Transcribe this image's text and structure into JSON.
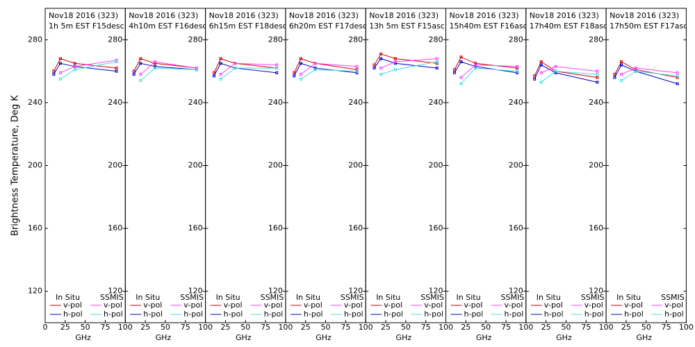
{
  "chart_data": [
    {
      "type": "line",
      "title": "Nov18 2016 (323)",
      "subtitle": "1h 5m  EST  F15desc",
      "ylabel": "Brightness Temperature, Deg K",
      "xlabel": "GHz",
      "x": [
        10.7,
        19,
        37,
        89
      ],
      "xlim": [
        0,
        100
      ],
      "xticks": [
        0,
        25,
        50,
        75,
        100
      ],
      "ylim": [
        100,
        300
      ],
      "yticks": [
        120,
        160,
        200,
        240,
        280
      ],
      "series": [
        {
          "group": "In Situ",
          "name": "v-pol",
          "color": "#d00000",
          "values": [
            260,
            268,
            265,
            262
          ]
        },
        {
          "group": "In Situ",
          "name": "h-pol",
          "color": "#0000c0",
          "values": [
            258,
            265,
            263,
            260
          ]
        },
        {
          "group": "SSMIS",
          "name": "v-pol",
          "color": "#ff40ff",
          "values": [
            null,
            259,
            263,
            267
          ]
        },
        {
          "group": "SSMIS",
          "name": "h-pol",
          "color": "#40e0e0",
          "values": [
            null,
            255,
            261,
            266
          ]
        }
      ]
    },
    {
      "type": "line",
      "title": "Nov18 2016 (323)",
      "subtitle": "4h10m  EST  F16desc",
      "xlabel": "GHz",
      "x": [
        10.7,
        19,
        37,
        89
      ],
      "xlim": [
        0,
        100
      ],
      "xticks": [
        25,
        50,
        75,
        100
      ],
      "ylim": [
        100,
        300
      ],
      "yticks": [
        120,
        160,
        200,
        240,
        280
      ],
      "series": [
        {
          "group": "In Situ",
          "name": "v-pol",
          "color": "#d00000",
          "values": [
            260,
            268,
            265,
            262
          ]
        },
        {
          "group": "In Situ",
          "name": "h-pol",
          "color": "#0000c0",
          "values": [
            258,
            265,
            263,
            261
          ]
        },
        {
          "group": "SSMIS",
          "name": "v-pol",
          "color": "#ff40ff",
          "values": [
            null,
            258,
            266,
            262
          ]
        },
        {
          "group": "SSMIS",
          "name": "h-pol",
          "color": "#40e0e0",
          "values": [
            null,
            254,
            262,
            261
          ]
        }
      ]
    },
    {
      "type": "line",
      "title": "Nov18 2016 (323)",
      "subtitle": "6h15m  EST  F18desc",
      "xlabel": "GHz",
      "x": [
        10.7,
        19,
        37,
        89
      ],
      "xlim": [
        0,
        100
      ],
      "xticks": [
        25,
        50,
        75,
        100
      ],
      "ylim": [
        100,
        300
      ],
      "yticks": [
        120,
        160,
        200,
        240,
        280
      ],
      "series": [
        {
          "group": "In Situ",
          "name": "v-pol",
          "color": "#d00000",
          "values": [
            259,
            268,
            265,
            262
          ]
        },
        {
          "group": "In Situ",
          "name": "h-pol",
          "color": "#0000c0",
          "values": [
            257,
            265,
            262,
            259
          ]
        },
        {
          "group": "SSMIS",
          "name": "v-pol",
          "color": "#ff40ff",
          "values": [
            null,
            258,
            265,
            264
          ]
        },
        {
          "group": "SSMIS",
          "name": "h-pol",
          "color": "#40e0e0",
          "values": [
            null,
            255,
            262,
            262
          ]
        }
      ]
    },
    {
      "type": "line",
      "title": "Nov18 2016 (323)",
      "subtitle": "6h20m  EST  F17desc",
      "xlabel": "GHz",
      "x": [
        10.7,
        19,
        37,
        89
      ],
      "xlim": [
        0,
        100
      ],
      "xticks": [
        25,
        50,
        75,
        100
      ],
      "ylim": [
        100,
        300
      ],
      "yticks": [
        120,
        160,
        200,
        240,
        280
      ],
      "series": [
        {
          "group": "In Situ",
          "name": "v-pol",
          "color": "#d00000",
          "values": [
            259,
            268,
            265,
            261
          ]
        },
        {
          "group": "In Situ",
          "name": "h-pol",
          "color": "#0000c0",
          "values": [
            257,
            265,
            262,
            259
          ]
        },
        {
          "group": "SSMIS",
          "name": "v-pol",
          "color": "#ff40ff",
          "values": [
            null,
            258,
            265,
            263
          ]
        },
        {
          "group": "SSMIS",
          "name": "h-pol",
          "color": "#40e0e0",
          "values": [
            null,
            255,
            261,
            260
          ]
        }
      ]
    },
    {
      "type": "line",
      "title": "Nov18 2016 (323)",
      "subtitle": "13h 5m  EST  F15asc",
      "xlabel": "GHz",
      "x": [
        10.7,
        19,
        37,
        89
      ],
      "xlim": [
        0,
        100
      ],
      "xticks": [
        25,
        50,
        75,
        100
      ],
      "ylim": [
        100,
        300
      ],
      "yticks": [
        120,
        160,
        200,
        240,
        280
      ],
      "series": [
        {
          "group": "In Situ",
          "name": "v-pol",
          "color": "#d00000",
          "values": [
            264,
            271,
            268,
            265
          ]
        },
        {
          "group": "In Situ",
          "name": "h-pol",
          "color": "#0000c0",
          "values": [
            262,
            268,
            265,
            262
          ]
        },
        {
          "group": "SSMIS",
          "name": "v-pol",
          "color": "#ff40ff",
          "values": [
            null,
            262,
            266,
            268
          ]
        },
        {
          "group": "SSMIS",
          "name": "h-pol",
          "color": "#40e0e0",
          "values": [
            null,
            258,
            261,
            266
          ]
        }
      ]
    },
    {
      "type": "line",
      "title": "Nov18 2016 (323)",
      "subtitle": "15h40m  EST  F16asc",
      "xlabel": "GHz",
      "x": [
        10.7,
        19,
        37,
        89
      ],
      "xlim": [
        0,
        100
      ],
      "xticks": [
        25,
        50,
        75,
        100
      ],
      "ylim": [
        100,
        300
      ],
      "yticks": [
        120,
        160,
        200,
        240,
        280
      ],
      "series": [
        {
          "group": "In Situ",
          "name": "v-pol",
          "color": "#d00000",
          "values": [
            261,
            269,
            265,
            262
          ]
        },
        {
          "group": "In Situ",
          "name": "h-pol",
          "color": "#0000c0",
          "values": [
            259,
            266,
            263,
            259
          ]
        },
        {
          "group": "SSMIS",
          "name": "v-pol",
          "color": "#ff40ff",
          "values": [
            null,
            256,
            264,
            263
          ]
        },
        {
          "group": "SSMIS",
          "name": "h-pol",
          "color": "#40e0e0",
          "values": [
            null,
            252,
            262,
            260
          ]
        }
      ]
    },
    {
      "type": "line",
      "title": "Nov18 2016 (323)",
      "subtitle": "17h40m  EST  F18asc",
      "xlabel": "GHz",
      "x": [
        10.7,
        19,
        37,
        89
      ],
      "xlim": [
        0,
        100
      ],
      "xticks": [
        25,
        50,
        75,
        100
      ],
      "ylim": [
        100,
        300
      ],
      "yticks": [
        120,
        160,
        200,
        240,
        280
      ],
      "series": [
        {
          "group": "In Situ",
          "name": "v-pol",
          "color": "#d00000",
          "values": [
            257,
            266,
            260,
            256
          ]
        },
        {
          "group": "In Situ",
          "name": "h-pol",
          "color": "#0000c0",
          "values": [
            255,
            264,
            259,
            253
          ]
        },
        {
          "group": "SSMIS",
          "name": "v-pol",
          "color": "#ff40ff",
          "values": [
            null,
            259,
            263,
            260
          ]
        },
        {
          "group": "SSMIS",
          "name": "h-pol",
          "color": "#40e0e0",
          "values": [
            null,
            253,
            260,
            258
          ]
        }
      ]
    },
    {
      "type": "line",
      "title": "Nov18 2016 (323)",
      "subtitle": "17h50m  EST  F17asc",
      "xlabel": "GHz",
      "x": [
        10.7,
        19,
        37,
        89
      ],
      "xlim": [
        0,
        100
      ],
      "xticks": [
        25,
        50,
        75,
        100
      ],
      "ylim": [
        100,
        300
      ],
      "yticks": [
        120,
        160,
        200,
        240,
        280
      ],
      "series": [
        {
          "group": "In Situ",
          "name": "v-pol",
          "color": "#d00000",
          "values": [
            258,
            266,
            261,
            256
          ]
        },
        {
          "group": "In Situ",
          "name": "h-pol",
          "color": "#0000c0",
          "values": [
            256,
            264,
            260,
            252
          ]
        },
        {
          "group": "SSMIS",
          "name": "v-pol",
          "color": "#ff40ff",
          "values": [
            null,
            258,
            262,
            259
          ]
        },
        {
          "group": "SSMIS",
          "name": "h-pol",
          "color": "#40e0e0",
          "values": [
            null,
            254,
            260,
            257
          ]
        }
      ]
    }
  ]
}
